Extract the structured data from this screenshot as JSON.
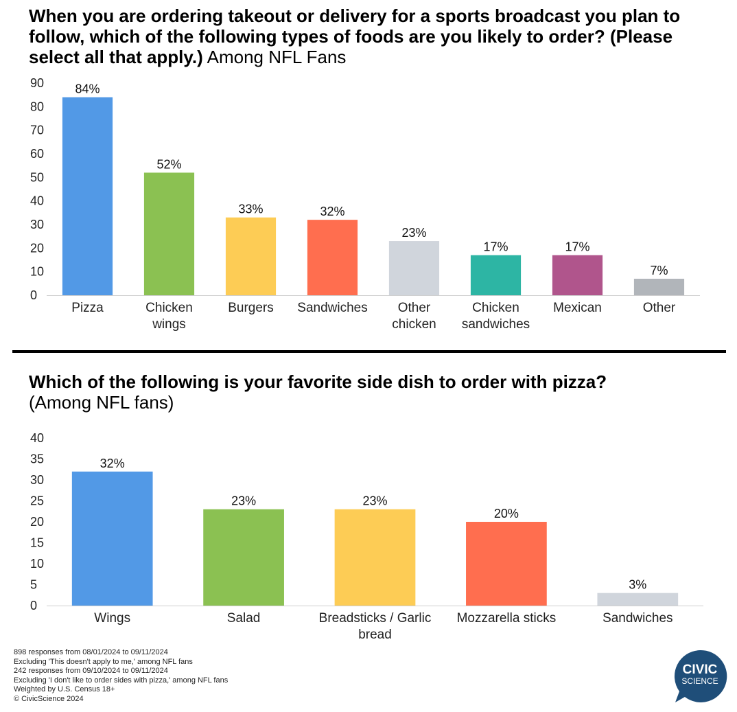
{
  "chart1": {
    "title_bold": "When you are ordering takeout or delivery for a sports broadcast you plan to follow, which of the following types of foods are you likely to order? (Please select all that apply.)",
    "title_light": " Among NFL Fans"
  },
  "chart2": {
    "title_bold": "Which of the following is your favorite side dish to order with pizza?",
    "title_light": "(Among NFL fans)"
  },
  "notes": [
    "898 responses from 08/01/2024 to 09/11/2024",
    "Excluding 'This doesn't apply to me,' among NFL fans",
    "242 responses from 09/10/2024 to 09/11/2024",
    "Excluding 'I don't like to order sides with pizza,' among NFL fans",
    "Weighted by U.S. Census 18+",
    "© CivicScience 2024"
  ],
  "logo": {
    "line1": "CIVIC",
    "line2": "SCIENCE",
    "color": "#1f4e79"
  },
  "chart_data": [
    {
      "type": "bar",
      "categories": [
        [
          "Pizza"
        ],
        [
          "Chicken",
          "wings"
        ],
        [
          "Burgers"
        ],
        [
          "Sandwiches"
        ],
        [
          "Other",
          "chicken"
        ],
        [
          "Chicken",
          "sandwiches"
        ],
        [
          "Mexican"
        ],
        [
          "Other"
        ]
      ],
      "values": [
        84,
        52,
        33,
        32,
        23,
        17,
        17,
        7
      ],
      "labels": [
        "84%",
        "52%",
        "33%",
        "32%",
        "23%",
        "17%",
        "17%",
        "7%"
      ],
      "colors": [
        "#5299e6",
        "#8bc152",
        "#fdcc55",
        "#ff6e4f",
        "#d0d5dc",
        "#2db5a4",
        "#b0558c",
        "#b1b5ba"
      ],
      "yticks": [
        0,
        10,
        20,
        30,
        40,
        50,
        60,
        70,
        80,
        90
      ],
      "ylim": [
        0,
        90
      ],
      "grid": false
    },
    {
      "type": "bar",
      "categories": [
        [
          "Wings"
        ],
        [
          "Salad"
        ],
        [
          "Breadsticks / Garlic",
          "bread"
        ],
        [
          "Mozzarella sticks"
        ],
        [
          "Sandwiches"
        ]
      ],
      "values": [
        32,
        23,
        23,
        20,
        3
      ],
      "labels": [
        "32%",
        "23%",
        "23%",
        "20%",
        "3%"
      ],
      "colors": [
        "#5299e6",
        "#8bc152",
        "#fdcc55",
        "#ff6e4f",
        "#d0d5dc"
      ],
      "yticks": [
        0,
        5,
        10,
        15,
        20,
        25,
        30,
        35,
        40
      ],
      "ylim": [
        0,
        40
      ],
      "grid": false
    }
  ]
}
